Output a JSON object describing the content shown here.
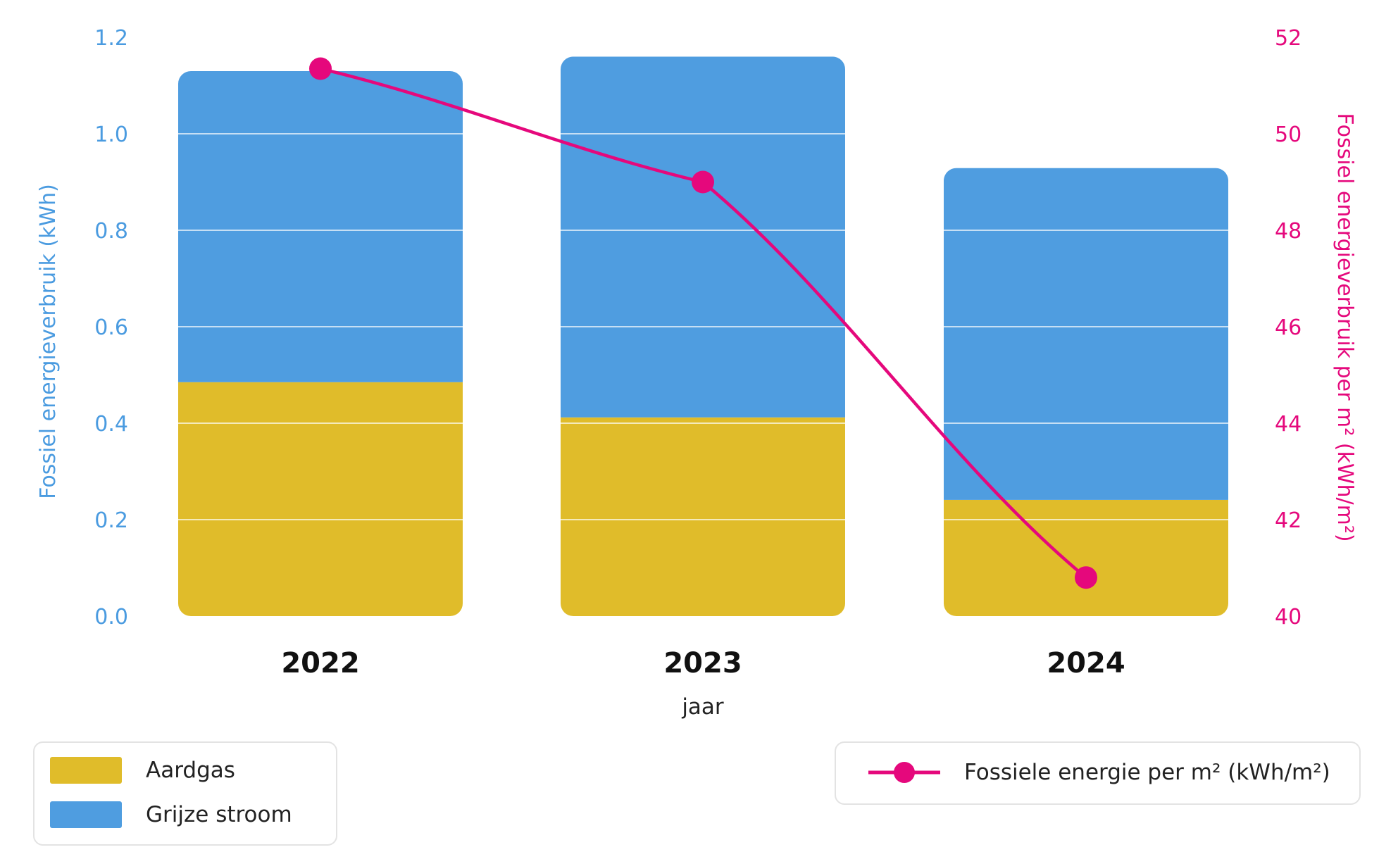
{
  "chart_data": {
    "type": "bar",
    "stacked": true,
    "categories": [
      "2022",
      "2023",
      "2024"
    ],
    "series": [
      {
        "name": "Aardgas",
        "values": [
          0.485,
          0.412,
          0.241
        ],
        "color": "#e0bc2a",
        "axis": "left"
      },
      {
        "name": "Grijze stroom",
        "values": [
          0.645,
          0.748,
          0.688
        ],
        "color": "#4f9de0",
        "axis": "left"
      }
    ],
    "line_series": {
      "name": "Fossiele energie per m² (kWh/m²)",
      "values": [
        51.35,
        49.0,
        40.8
      ],
      "color": "#e5087c",
      "axis": "right"
    },
    "xlabel": "jaar",
    "ylabel": "Fossiel energieverbruik (kWh)",
    "ylabel_right": "Fossiel energieverbruik per m² (kWh/m²)",
    "ylim": [
      0,
      1.2
    ],
    "ylim_right": [
      40,
      52
    ],
    "yticks_left": [
      "0.0",
      "0.2",
      "0.4",
      "0.6",
      "0.8",
      "1.0",
      "1.2"
    ],
    "yticks_right": [
      "40",
      "42",
      "44",
      "46",
      "48",
      "50",
      "52"
    ],
    "grid": true,
    "legend_placement": "bottom"
  },
  "legend": {
    "bars": [
      {
        "label": "Aardgas",
        "color": "#e0bc2a"
      },
      {
        "label": "Grijze stroom",
        "color": "#4f9de0"
      }
    ],
    "line": {
      "label": "Fossiele energie per m² (kWh/m²)",
      "color": "#e5087c"
    }
  }
}
